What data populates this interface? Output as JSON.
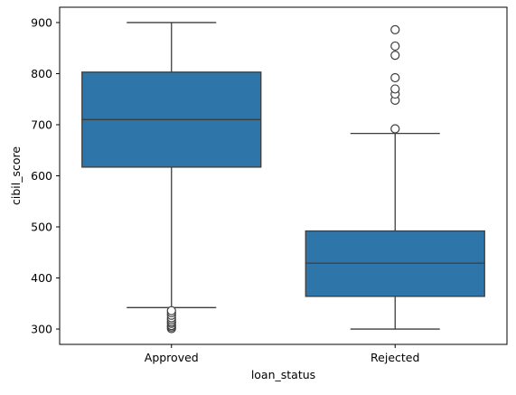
{
  "chart_data": {
    "type": "box",
    "xlabel": "loan_status",
    "ylabel": "cibil_score",
    "categories": [
      "Approved",
      "Rejected"
    ],
    "ylim": [
      270,
      930
    ],
    "yticks": [
      300,
      400,
      500,
      600,
      700,
      800,
      900
    ],
    "ytick_labels": [
      "300",
      "400",
      "500",
      "600",
      "700",
      "800",
      "900"
    ],
    "grid": false,
    "legend": "none",
    "boxes": [
      {
        "category": "Approved",
        "whisker_low": 342,
        "q1": 617,
        "median": 710,
        "q3": 803,
        "whisker_high": 900,
        "outliers": [
          301,
          304,
          307,
          311,
          314,
          318,
          322,
          327,
          332,
          336
        ]
      },
      {
        "category": "Rejected",
        "whisker_low": 300,
        "q1": 364,
        "median": 429,
        "q3": 492,
        "whisker_high": 683,
        "outliers": [
          692,
          748,
          760,
          770,
          792,
          836,
          854,
          886
        ]
      }
    ],
    "colors": {
      "box_fill": "#2e75aa",
      "line": "#3d3d3d",
      "axis": "#000000",
      "outlier_fill": "#ffffff"
    }
  }
}
